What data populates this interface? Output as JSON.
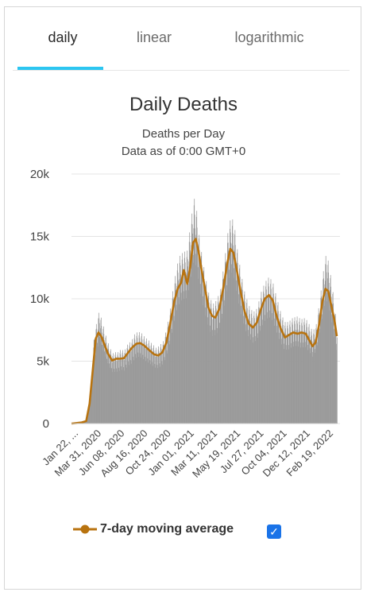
{
  "tabs": [
    {
      "label": "daily",
      "active": true
    },
    {
      "label": "linear",
      "active": false
    },
    {
      "label": "logarithmic",
      "active": false
    }
  ],
  "colors": {
    "accent": "#2cc6f1",
    "bars": "#9b9b9b",
    "average": "#b8730f",
    "checkbox": "#1a73e8"
  },
  "legend": {
    "label": "7-day moving average",
    "checked": true
  },
  "chart_data": {
    "type": "bar",
    "title": "Daily Deaths",
    "subtitle": [
      "Deaths per Day",
      "Data as of 0:00 GMT+0"
    ],
    "ylim": [
      0,
      20000
    ],
    "yticks": [
      0,
      5000,
      10000,
      15000,
      20000
    ],
    "ytick_labels": [
      "0",
      "5k",
      "10k",
      "15k",
      "20k"
    ],
    "xtick_labels": [
      "Jan 22, ...",
      "Mar 31, 2020",
      "Jun 08, 2020",
      "Aug 16, 2020",
      "Oct 24, 2020",
      "Jan 01, 2021",
      "Mar 11, 2021",
      "May 19, 2021",
      "Jul 27, 2021",
      "Oct 04, 2021",
      "Dec 12, 2021",
      "Feb 19, 2022"
    ],
    "x_start": "2020-01-22",
    "x_end": "2022-03-09",
    "grid": true,
    "series": [
      {
        "kind": "bar",
        "points": [
          [
            "2020-01-22",
            0
          ],
          [
            "2020-02-10",
            100
          ],
          [
            "2020-03-01",
            200
          ],
          [
            "2020-03-12",
            1000
          ],
          [
            "2020-03-20",
            3500
          ],
          [
            "2020-03-28",
            6500
          ],
          [
            "2020-04-05",
            7500
          ],
          [
            "2020-04-12",
            8300
          ],
          [
            "2020-04-18",
            7600
          ],
          [
            "2020-04-26",
            6900
          ],
          [
            "2020-05-04",
            6100
          ],
          [
            "2020-05-12",
            5600
          ],
          [
            "2020-05-20",
            5100
          ],
          [
            "2020-05-28",
            5200
          ],
          [
            "2020-06-05",
            5200
          ],
          [
            "2020-06-14",
            5400
          ],
          [
            "2020-06-24",
            5300
          ],
          [
            "2020-07-04",
            5800
          ],
          [
            "2020-07-14",
            6000
          ],
          [
            "2020-07-24",
            6500
          ],
          [
            "2020-08-03",
            6700
          ],
          [
            "2020-08-13",
            6600
          ],
          [
            "2020-08-23",
            6300
          ],
          [
            "2020-09-02",
            6100
          ],
          [
            "2020-09-14",
            5800
          ],
          [
            "2020-09-26",
            5500
          ],
          [
            "2020-10-06",
            5700
          ],
          [
            "2020-10-16",
            6000
          ],
          [
            "2020-10-26",
            6900
          ],
          [
            "2020-11-05",
            8200
          ],
          [
            "2020-11-15",
            10000
          ],
          [
            "2020-11-25",
            11500
          ],
          [
            "2020-12-05",
            12300
          ],
          [
            "2020-12-15",
            12500
          ],
          [
            "2020-12-25",
            12600
          ],
          [
            "2021-01-04",
            14500
          ],
          [
            "2021-01-14",
            16500
          ],
          [
            "2021-01-22",
            15500
          ],
          [
            "2021-01-30",
            13500
          ],
          [
            "2021-02-08",
            12000
          ],
          [
            "2021-02-18",
            10500
          ],
          [
            "2021-02-28",
            9300
          ],
          [
            "2021-03-10",
            8700
          ],
          [
            "2021-03-22",
            9000
          ],
          [
            "2021-04-02",
            9800
          ],
          [
            "2021-04-14",
            12000
          ],
          [
            "2021-04-26",
            14500
          ],
          [
            "2021-05-04",
            15100
          ],
          [
            "2021-05-12",
            14500
          ],
          [
            "2021-05-22",
            12500
          ],
          [
            "2021-06-02",
            10800
          ],
          [
            "2021-06-12",
            9500
          ],
          [
            "2021-06-24",
            8600
          ],
          [
            "2021-07-06",
            8100
          ],
          [
            "2021-07-18",
            8400
          ],
          [
            "2021-07-30",
            9600
          ],
          [
            "2021-08-10",
            10300
          ],
          [
            "2021-08-22",
            10700
          ],
          [
            "2021-09-02",
            10300
          ],
          [
            "2021-09-12",
            9300
          ],
          [
            "2021-09-24",
            8200
          ],
          [
            "2021-10-06",
            7400
          ],
          [
            "2021-10-18",
            7400
          ],
          [
            "2021-10-30",
            7700
          ],
          [
            "2021-11-12",
            7800
          ],
          [
            "2021-11-24",
            7600
          ],
          [
            "2021-12-06",
            7700
          ],
          [
            "2021-12-16",
            7300
          ],
          [
            "2021-12-28",
            6700
          ],
          [
            "2022-01-08",
            7300
          ],
          [
            "2022-01-20",
            9500
          ],
          [
            "2022-01-30",
            11500
          ],
          [
            "2022-02-06",
            12500
          ],
          [
            "2022-02-14",
            11500
          ],
          [
            "2022-02-24",
            9800
          ],
          [
            "2022-03-04",
            8000
          ],
          [
            "2022-03-09",
            7200
          ]
        ]
      },
      {
        "kind": "line",
        "name": "7-day moving average",
        "points": [
          [
            "2020-01-22",
            0
          ],
          [
            "2020-02-20",
            80
          ],
          [
            "2020-03-05",
            200
          ],
          [
            "2020-03-15",
            1600
          ],
          [
            "2020-03-25",
            4500
          ],
          [
            "2020-04-02",
            6800
          ],
          [
            "2020-04-10",
            7300
          ],
          [
            "2020-04-18",
            7000
          ],
          [
            "2020-04-28",
            6300
          ],
          [
            "2020-05-08",
            5600
          ],
          [
            "2020-05-20",
            5050
          ],
          [
            "2020-06-01",
            5200
          ],
          [
            "2020-06-12",
            5200
          ],
          [
            "2020-06-24",
            5250
          ],
          [
            "2020-07-06",
            5700
          ],
          [
            "2020-07-18",
            6100
          ],
          [
            "2020-07-30",
            6400
          ],
          [
            "2020-08-10",
            6450
          ],
          [
            "2020-08-22",
            6250
          ],
          [
            "2020-09-05",
            5900
          ],
          [
            "2020-09-20",
            5550
          ],
          [
            "2020-10-02",
            5450
          ],
          [
            "2020-10-14",
            5700
          ],
          [
            "2020-10-26",
            6500
          ],
          [
            "2020-11-06",
            8000
          ],
          [
            "2020-11-18",
            9800
          ],
          [
            "2020-11-28",
            10800
          ],
          [
            "2020-12-08",
            11300
          ],
          [
            "2020-12-16",
            12300
          ],
          [
            "2020-12-26",
            11200
          ],
          [
            "2021-01-04",
            12600
          ],
          [
            "2021-01-12",
            14500
          ],
          [
            "2021-01-20",
            14800
          ],
          [
            "2021-01-28",
            13800
          ],
          [
            "2021-02-06",
            12300
          ],
          [
            "2021-02-16",
            10800
          ],
          [
            "2021-02-26",
            9300
          ],
          [
            "2021-03-08",
            8650
          ],
          [
            "2021-03-18",
            8500
          ],
          [
            "2021-03-30",
            9200
          ],
          [
            "2021-04-10",
            10800
          ],
          [
            "2021-04-22",
            12800
          ],
          [
            "2021-05-01",
            14000
          ],
          [
            "2021-05-10",
            13700
          ],
          [
            "2021-05-20",
            12300
          ],
          [
            "2021-06-01",
            10500
          ],
          [
            "2021-06-12",
            9000
          ],
          [
            "2021-06-24",
            8000
          ],
          [
            "2021-07-06",
            7700
          ],
          [
            "2021-07-18",
            8100
          ],
          [
            "2021-07-30",
            9200
          ],
          [
            "2021-08-10",
            10000
          ],
          [
            "2021-08-22",
            10300
          ],
          [
            "2021-09-02",
            9900
          ],
          [
            "2021-09-14",
            8600
          ],
          [
            "2021-09-26",
            7600
          ],
          [
            "2021-10-08",
            6900
          ],
          [
            "2021-10-20",
            7100
          ],
          [
            "2021-11-01",
            7300
          ],
          [
            "2021-11-14",
            7200
          ],
          [
            "2021-11-26",
            7300
          ],
          [
            "2021-12-08",
            7200
          ],
          [
            "2021-12-20",
            6600
          ],
          [
            "2021-12-28",
            6200
          ],
          [
            "2022-01-06",
            6500
          ],
          [
            "2022-01-16",
            7900
          ],
          [
            "2022-01-26",
            9800
          ],
          [
            "2022-02-04",
            10800
          ],
          [
            "2022-02-12",
            10600
          ],
          [
            "2022-02-22",
            9300
          ],
          [
            "2022-03-02",
            8300
          ],
          [
            "2022-03-09",
            7000
          ]
        ]
      }
    ]
  }
}
